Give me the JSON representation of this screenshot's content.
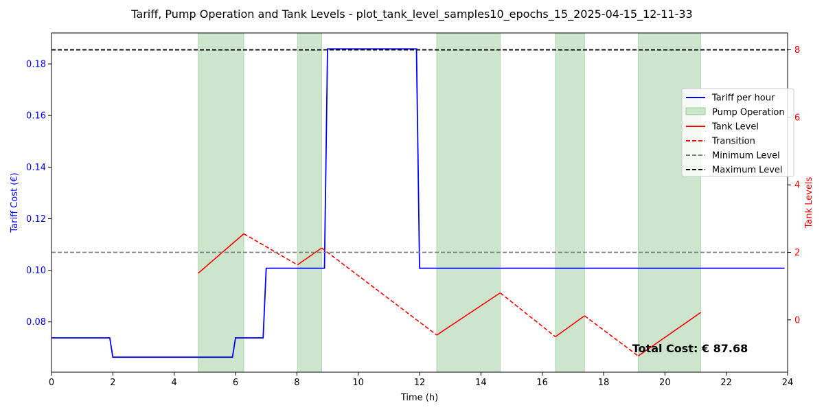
{
  "chart_data": {
    "type": "line",
    "title": "Tariff, Pump Operation and Tank Levels - plot_tank_level_samples10_epochs_15_2025-04-15_12-11-33",
    "xlabel": "Time (h)",
    "ylabel_left": "Tariff Cost (€)",
    "ylabel_right": "Tank Levels",
    "xlim": [
      0,
      24
    ],
    "ylim_left": [
      0.0605,
      0.192
    ],
    "ylim_right": [
      -1.55,
      8.5
    ],
    "x_ticks": [
      "0",
      "2",
      "4",
      "6",
      "8",
      "10",
      "12",
      "14",
      "16",
      "18",
      "20",
      "22",
      "24"
    ],
    "y_ticks_left": [
      "0.08",
      "0.10",
      "0.12",
      "0.14",
      "0.16",
      "0.18"
    ],
    "y_ticks_right": [
      "0",
      "2",
      "4",
      "6",
      "8"
    ],
    "grid": false,
    "legend_position": "center-right",
    "colors": {
      "tariff": "#0000ff",
      "pump": "#cce5cc",
      "tank": "#ff0000",
      "min_level": "#808080",
      "max_level": "#000000",
      "left_axis": "#0000ff",
      "right_axis": "#ff0000"
    },
    "tariff": {
      "name": "Tariff per hour",
      "x": [
        0,
        1.9,
        2.0,
        5.9,
        6.0,
        6.9,
        7.0,
        8.9,
        9.0,
        11.9,
        12.0,
        23.9
      ],
      "y": [
        0.0738,
        0.0738,
        0.0663,
        0.0663,
        0.0738,
        0.0738,
        0.1008,
        0.1008,
        0.1858,
        0.1858,
        0.1008,
        0.1008
      ]
    },
    "pump_operation": {
      "name": "Pump Operation",
      "intervals": [
        [
          4.78,
          6.27
        ],
        [
          8.02,
          8.81
        ],
        [
          12.56,
          14.63
        ],
        [
          16.43,
          17.38
        ],
        [
          19.13,
          21.17
        ]
      ]
    },
    "tank_level_segments": [
      {
        "x": [
          4.78,
          6.27
        ],
        "y": [
          1.38,
          2.55
        ]
      },
      {
        "x": [
          8.02,
          8.81
        ],
        "y": [
          1.63,
          2.13
        ]
      },
      {
        "x": [
          12.56,
          14.63
        ],
        "y": [
          -0.45,
          0.8
        ]
      },
      {
        "x": [
          16.43,
          17.38
        ],
        "y": [
          -0.5,
          0.12
        ]
      },
      {
        "x": [
          19.13,
          21.17
        ],
        "y": [
          -1.07,
          0.22
        ]
      }
    ],
    "transition_segments": [
      {
        "x": [
          6.27,
          8.02
        ],
        "y": [
          2.55,
          1.63
        ]
      },
      {
        "x": [
          8.81,
          12.56
        ],
        "y": [
          2.13,
          -0.45
        ]
      },
      {
        "x": [
          14.63,
          16.43
        ],
        "y": [
          0.8,
          -0.5
        ]
      },
      {
        "x": [
          17.38,
          19.13
        ],
        "y": [
          0.12,
          -1.07
        ]
      }
    ],
    "min_level": 2,
    "max_level": 8,
    "legend": [
      "Tariff per hour",
      "Pump Operation",
      "Tank Level",
      "Transition",
      "Minimum Level",
      "Maximum Level"
    ],
    "annotation": "Total Cost: € 87.68"
  }
}
